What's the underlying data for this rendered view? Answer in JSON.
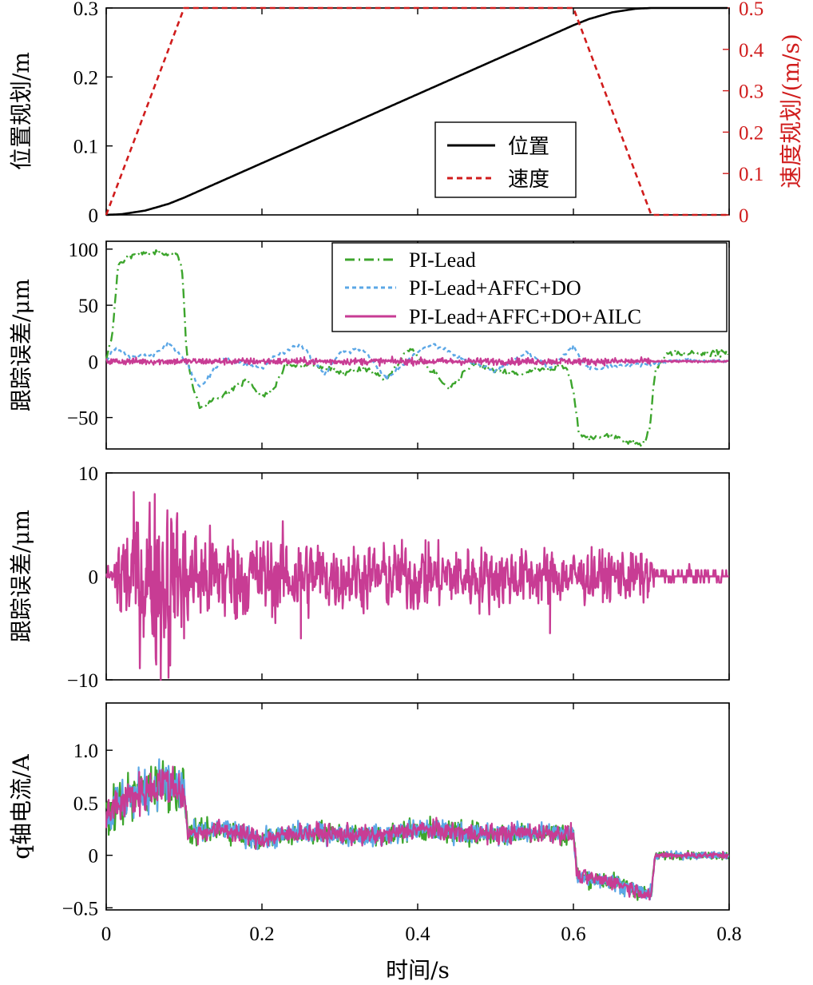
{
  "chart_data": [
    {
      "type": "line",
      "panel": "a",
      "ylabel": "位置规划/m",
      "ylabel_right": "速度规划/(m/s)",
      "xlim": [
        0,
        0.8
      ],
      "ylim": [
        0,
        0.3
      ],
      "ylim_right": [
        0,
        0.5
      ],
      "yticks": [
        "0",
        "0.1",
        "0.2",
        "0.3"
      ],
      "yticks_right": [
        "0",
        "0.1",
        "0.2",
        "0.3",
        "0.4",
        "0.5"
      ],
      "legend_placement": "lower-right",
      "colors": {
        "position": "#000000",
        "velocity": "#d01c1c",
        "right_axis": "#d01c1c"
      },
      "series": [
        {
          "name": "位置",
          "axis": "left",
          "style": "solid",
          "x": [
            0,
            0.02,
            0.05,
            0.08,
            0.1,
            0.6,
            0.62,
            0.65,
            0.68,
            0.7,
            0.8
          ],
          "y": [
            0,
            0.001,
            0.00625,
            0.016,
            0.025,
            0.275,
            0.284,
            0.29375,
            0.299,
            0.3,
            0.3
          ]
        },
        {
          "name": "速度",
          "axis": "right",
          "style": "dashed",
          "x": [
            0,
            0.1,
            0.6,
            0.7,
            0.8
          ],
          "y": [
            0,
            0.5,
            0.5,
            0,
            0
          ]
        }
      ]
    },
    {
      "type": "line",
      "panel": "b",
      "ylabel": "跟踪误差/μm",
      "xlim": [
        0,
        0.8
      ],
      "ylim": [
        -78,
        107
      ],
      "yticks": [
        "−50",
        "0",
        "50",
        "100"
      ],
      "legend_placement": "top-right",
      "colors": {
        "PI-Lead": "#3ca52c",
        "PI-Lead+AFFC+DO": "#5ba7e6",
        "PI-Lead+AFFC+DO+AILC": "#c83c94"
      },
      "series": [
        {
          "name": "PI-Lead",
          "style": "dash-dot",
          "x": [
            0,
            0.008,
            0.015,
            0.03,
            0.06,
            0.09,
            0.098,
            0.103,
            0.11,
            0.12,
            0.15,
            0.18,
            0.2,
            0.215,
            0.23,
            0.26,
            0.3,
            0.33,
            0.36,
            0.39,
            0.42,
            0.44,
            0.47,
            0.5,
            0.53,
            0.56,
            0.59,
            0.6,
            0.607,
            0.62,
            0.65,
            0.67,
            0.69,
            0.698,
            0.705,
            0.72,
            0.76,
            0.8
          ],
          "y": [
            0,
            25,
            85,
            95,
            96,
            97,
            80,
            10,
            -20,
            -42,
            -30,
            -16,
            -32,
            -25,
            -4,
            -2,
            -10,
            -6,
            -16,
            12,
            -10,
            -24,
            -3,
            -8,
            -12,
            -7,
            -4,
            -25,
            -65,
            -68,
            -66,
            -72,
            -74,
            -60,
            -8,
            7,
            8,
            7
          ]
        },
        {
          "name": "PI-Lead+AFFC+DO",
          "style": "dotted",
          "x": [
            0,
            0.01,
            0.03,
            0.06,
            0.08,
            0.1,
            0.12,
            0.15,
            0.2,
            0.22,
            0.25,
            0.28,
            0.3,
            0.33,
            0.36,
            0.4,
            0.42,
            0.46,
            0.5,
            0.54,
            0.57,
            0.6,
            0.62,
            0.65,
            0.7,
            0.74,
            0.8
          ],
          "y": [
            0,
            12,
            4,
            6,
            16,
            2,
            -24,
            3,
            -6,
            6,
            15,
            -12,
            8,
            11,
            -16,
            9,
            15,
            2,
            -9,
            8,
            -6,
            13,
            -7,
            -4,
            -2,
            1,
            0
          ]
        },
        {
          "name": "PI-Lead+AFFC+DO+AILC",
          "style": "solid",
          "amplitude": 3,
          "mean": 0
        }
      ]
    },
    {
      "type": "line",
      "panel": "c",
      "ylabel": "跟踪误差/μm",
      "xlim": [
        0,
        0.8
      ],
      "ylim": [
        -10,
        10
      ],
      "yticks": [
        "−10",
        "0",
        "10"
      ],
      "colors": {
        "PI-Lead+AFFC+DO+AILC": "#c83c94"
      },
      "series": [
        {
          "name": "PI-Lead+AFFC+DO+AILC",
          "style": "solid",
          "envelope": {
            "x": [
              0,
              0.01,
              0.015,
              0.05,
              0.07,
              0.085,
              0.1,
              0.2,
              0.25,
              0.3,
              0.4,
              0.5,
              0.6,
              0.7,
              0.705,
              0.8
            ],
            "amplitude": [
              1,
              1,
              6,
              7,
              9,
              7,
              5,
              4,
              4,
              3,
              3.2,
              3,
              2.5,
              2.5,
              0.6,
              0.6
            ]
          },
          "spikes": {
            "x": [
              0.07,
              0.08,
              0.1,
              0.25,
              0.41,
              0.57
            ],
            "y": [
              -10,
              -9.8,
              -6,
              -6,
              3.5,
              -5.5
            ]
          }
        }
      ]
    },
    {
      "type": "line",
      "panel": "d",
      "ylabel": "q轴电流/A",
      "xlabel": "时间/s",
      "xlim": [
        0,
        0.8
      ],
      "ylim": [
        -0.52,
        1.45
      ],
      "yticks": [
        "−0.5",
        "0",
        "0.5",
        "1.0"
      ],
      "xticks": [
        "0",
        "0.2",
        "0.4",
        "0.6",
        "0.8"
      ],
      "colors": {
        "PI-Lead": "#3ca52c",
        "PI-Lead+AFFC+DO": "#5ba7e6",
        "PI-Lead+AFFC+DO+AILC": "#c83c94"
      },
      "series": [
        {
          "name": "PI-Lead+AFFC+DO+AILC",
          "style": "solid",
          "x": [
            0,
            0.01,
            0.03,
            0.05,
            0.07,
            0.09,
            0.1,
            0.105,
            0.15,
            0.2,
            0.25,
            0.3,
            0.35,
            0.4,
            0.45,
            0.5,
            0.55,
            0.6,
            0.605,
            0.65,
            0.7,
            0.705,
            0.8
          ],
          "y": [
            0.35,
            0.45,
            0.55,
            0.6,
            0.7,
            0.65,
            0.6,
            0.2,
            0.25,
            0.15,
            0.22,
            0.2,
            0.18,
            0.25,
            0.22,
            0.2,
            0.22,
            0.2,
            -0.2,
            -0.25,
            -0.38,
            0,
            0
          ]
        }
      ]
    }
  ]
}
